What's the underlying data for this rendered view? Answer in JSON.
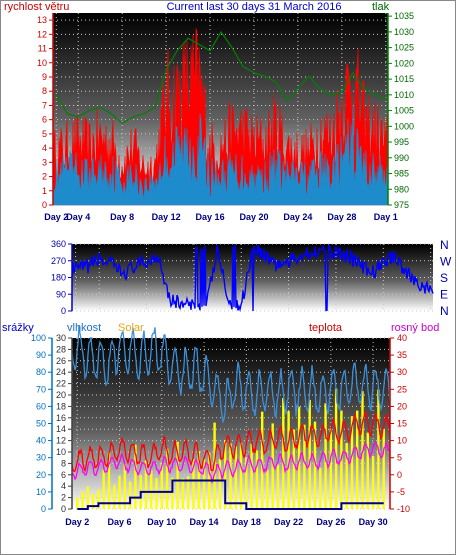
{
  "header": {
    "wind_label": "rychlost větru",
    "title": "Current last 30 days 31 March 2016",
    "pressure_label": "tlak"
  },
  "direction_labels": [
    "N",
    "W",
    "S",
    "E",
    "N"
  ],
  "lower_header": {
    "rain_label": "srážky",
    "humidity_label": "vlhkost",
    "solar_label": "Solar",
    "temp_label": "teplota",
    "dew_label": "rosný bod"
  },
  "colors": {
    "wind_gust": "#ff0000",
    "wind_avg": "#1e8ccc",
    "pressure": "#008000",
    "direction": "#0000ff",
    "rain": "#000080",
    "humidity": "#3d8fd9",
    "solar": "#ffff00",
    "temperature": "#ff0000",
    "dew_point": "#ff00ff",
    "title_blue": "#0000cc",
    "wind_label_red": "#cc0000",
    "pressure_label_green": "#006600",
    "solar_label_orange": "#e6a817",
    "dew_label_magenta": "#cc00cc",
    "rain_axis_blue": "#0070c0"
  },
  "chart_data": [
    {
      "type": "line",
      "name": "wind-pressure",
      "x_ticks": [
        "Day 2",
        "Day 4",
        "Day 8",
        "Day 12",
        "Day 16",
        "Day 20",
        "Day 24",
        "Day 28",
        "Day 1"
      ],
      "x_tick_days": [
        2,
        4,
        8,
        12,
        16,
        20,
        24,
        28,
        32
      ],
      "xlim": [
        1.7,
        32.2
      ],
      "y_left_ticks": [
        "0",
        "1",
        "2",
        "3",
        "4",
        "5",
        "6",
        "7",
        "8",
        "9",
        "10",
        "11",
        "12",
        "13"
      ],
      "ylim_left": [
        0,
        13.5
      ],
      "y_right_ticks": [
        "975",
        "980",
        "985",
        "990",
        "995",
        "1000",
        "1005",
        "1010",
        "1015",
        "1020",
        "1025",
        "1030",
        "1035"
      ],
      "ylim_right": [
        975,
        1036
      ],
      "series": [
        {
          "name": "rychlost větru",
          "axis": "left",
          "kind": "gust",
          "x": [
            2,
            3,
            4,
            5,
            6,
            7,
            8,
            9,
            10,
            11,
            12,
            13,
            14,
            15,
            16,
            17,
            18,
            19,
            20,
            21,
            22,
            23,
            24,
            25,
            26,
            27,
            28,
            29,
            30,
            31,
            32
          ],
          "y": [
            5,
            5.5,
            6,
            5.5,
            6.5,
            6,
            4,
            5.5,
            3.5,
            4,
            10,
            10.5,
            11.5,
            12,
            5.5,
            5.5,
            7,
            7,
            6,
            6,
            7.5,
            5.5,
            5,
            5,
            7,
            6.5,
            9.5,
            12,
            8,
            7,
            6
          ]
        },
        {
          "name": "rychlost větru průměr",
          "axis": "left",
          "kind": "avg",
          "x": [
            2,
            3,
            4,
            5,
            6,
            7,
            8,
            9,
            10,
            11,
            12,
            13,
            14,
            15,
            16,
            17,
            18,
            19,
            20,
            21,
            22,
            23,
            24,
            25,
            26,
            27,
            28,
            29,
            30,
            31,
            32
          ],
          "y": [
            3,
            3.5,
            3.5,
            3,
            3.5,
            3.5,
            2.5,
            3,
            2,
            2.5,
            5,
            5.5,
            6,
            6.5,
            3,
            3,
            3.5,
            3.5,
            3,
            3,
            4,
            3,
            3,
            3,
            3.5,
            3.5,
            4.5,
            6.5,
            4,
            3.5,
            3
          ]
        },
        {
          "name": "tlak",
          "axis": "right",
          "kind": "pressure",
          "x": [
            2,
            3,
            4,
            5,
            6,
            7,
            8,
            9,
            10,
            11,
            12,
            13,
            14,
            15,
            16,
            17,
            18,
            19,
            20,
            21,
            22,
            23,
            24,
            25,
            26,
            27,
            28,
            29,
            30,
            31,
            32
          ],
          "y": [
            1010,
            1004,
            1003,
            1005,
            1006,
            1004,
            1001,
            1003,
            1004,
            1006,
            1018,
            1024,
            1028,
            1026,
            1024,
            1030,
            1025,
            1019,
            1017,
            1016,
            1014,
            1008,
            1012,
            1016,
            1012,
            1010,
            1011,
            1017,
            1012,
            1010,
            1009
          ]
        }
      ]
    },
    {
      "type": "line",
      "name": "wind-direction",
      "xlim": [
        1.7,
        32.2
      ],
      "y_ticks": [
        "0",
        "90",
        "180",
        "270",
        "360"
      ],
      "ylim": [
        0,
        360
      ],
      "series": [
        {
          "name": "směr větru",
          "x": [
            2,
            3,
            4,
            5,
            6,
            7,
            8,
            9,
            10,
            11,
            12,
            13,
            14,
            15,
            16,
            17,
            18,
            19,
            20,
            21,
            22,
            23,
            24,
            25,
            26,
            27,
            28,
            29,
            30,
            31,
            32
          ],
          "y": [
            220,
            240,
            280,
            250,
            200,
            240,
            260,
            300,
            60,
            40,
            20,
            10,
            330,
            20,
            30,
            350,
            300,
            250,
            260,
            300,
            320,
            330,
            310,
            300,
            250,
            200,
            260,
            300,
            200,
            150,
            100
          ]
        }
      ]
    },
    {
      "type": "line",
      "name": "rain-humidity-solar-temperature",
      "x_ticks": [
        "Day 2",
        "Day 6",
        "Day 10",
        "Day 14",
        "Day 18",
        "Day 22",
        "Day 26",
        "Day 30"
      ],
      "x_tick_days": [
        2,
        6,
        10,
        14,
        18,
        22,
        26,
        30
      ],
      "xlim": [
        1.5,
        31.6
      ],
      "y_rain_ticks": [
        "0",
        "2",
        "4",
        "6",
        "8",
        "10",
        "12",
        "14",
        "16",
        "18",
        "20",
        "22",
        "24",
        "26",
        "28",
        "30"
      ],
      "ylim_rain": [
        0,
        30
      ],
      "y_humidity_ticks": [
        "0",
        "10",
        "20",
        "30",
        "40",
        "50",
        "60",
        "70",
        "80",
        "90",
        "100"
      ],
      "ylim_humidity": [
        0,
        100
      ],
      "y_temp_ticks": [
        "-10",
        "-5",
        "0",
        "5",
        "10",
        "15",
        "20",
        "25",
        "30",
        "35",
        "40"
      ],
      "ylim_temp": [
        -10,
        40
      ],
      "series": [
        {
          "name": "vlhkost",
          "axis": "humidity",
          "x": [
            2,
            3,
            4,
            5,
            6,
            7,
            8,
            9,
            10,
            11,
            12,
            13,
            14,
            15,
            16,
            17,
            18,
            19,
            20,
            21,
            22,
            23,
            24,
            25,
            26,
            27,
            28,
            29,
            30,
            31
          ],
          "y": [
            95,
            90,
            88,
            85,
            95,
            92,
            88,
            95,
            90,
            85,
            80,
            82,
            78,
            70,
            60,
            72,
            70,
            68,
            70,
            66,
            72,
            68,
            70,
            66,
            72,
            70,
            74,
            70,
            72,
            68
          ]
        },
        {
          "name": "Solar",
          "axis": "rain",
          "x": [
            2,
            3,
            4,
            5,
            6,
            7,
            8,
            9,
            10,
            11,
            12,
            13,
            14,
            15,
            16,
            17,
            18,
            19,
            20,
            21,
            22,
            23,
            24,
            25,
            26,
            27,
            28,
            29,
            30,
            31
          ],
          "y": [
            5,
            4,
            6,
            9,
            7,
            10,
            12,
            10,
            11,
            13,
            12,
            13,
            14,
            15,
            15,
            16,
            17,
            16,
            17,
            18,
            18,
            17,
            19,
            18,
            20,
            19,
            21,
            20,
            22,
            23
          ]
        },
        {
          "name": "teplota",
          "axis": "temp",
          "x": [
            2,
            3,
            4,
            5,
            6,
            7,
            8,
            9,
            10,
            11,
            12,
            13,
            14,
            15,
            16,
            17,
            18,
            19,
            20,
            21,
            22,
            23,
            24,
            25,
            26,
            27,
            28,
            29,
            30,
            31
          ],
          "y": [
            4,
            5,
            5,
            6,
            8,
            7,
            6,
            5,
            8,
            6,
            7,
            6,
            5,
            4,
            9,
            8,
            9,
            10,
            9,
            11,
            10,
            11,
            12,
            11,
            13,
            12,
            14,
            15,
            15,
            14
          ]
        },
        {
          "name": "rosný bod",
          "axis": "temp",
          "x": [
            2,
            3,
            4,
            5,
            6,
            7,
            8,
            9,
            10,
            11,
            12,
            13,
            14,
            15,
            16,
            17,
            18,
            19,
            20,
            21,
            22,
            23,
            24,
            25,
            26,
            27,
            28,
            29,
            30,
            31
          ],
          "y": [
            1,
            2,
            2,
            3,
            4,
            3,
            2,
            2,
            3,
            3,
            3,
            2,
            2,
            0,
            2,
            2,
            3,
            3,
            3,
            4,
            3,
            4,
            4,
            4,
            5,
            5,
            6,
            7,
            8,
            7
          ]
        },
        {
          "name": "srážky",
          "axis": "rain",
          "x": [
            2,
            3,
            4,
            5,
            6,
            7,
            8,
            9,
            10,
            11,
            12,
            13,
            14,
            15,
            16,
            17,
            18,
            19,
            20,
            21,
            22,
            23,
            24,
            25,
            26,
            27,
            28,
            29,
            30,
            31
          ],
          "y": [
            0,
            0.5,
            1,
            1,
            1,
            2,
            3,
            3,
            3,
            5,
            5,
            5,
            5,
            5,
            1,
            1,
            0,
            0,
            0,
            0,
            0,
            0,
            0,
            0,
            0,
            1,
            1,
            1,
            1,
            1
          ]
        }
      ]
    }
  ]
}
